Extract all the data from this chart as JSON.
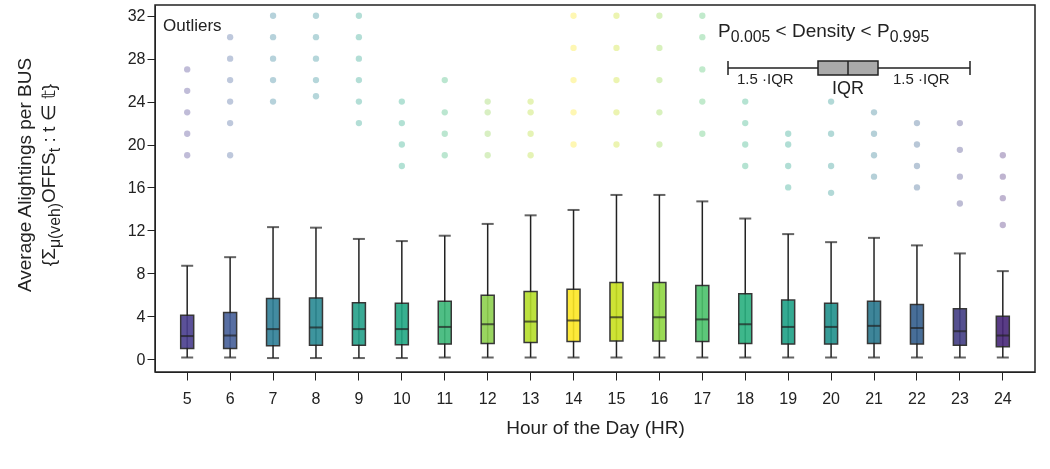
{
  "chart_data": {
    "type": "box",
    "xlabel": "Hour of the Day (HR)",
    "ylabel": "Average Alightings per BUS\n{Σ$_{μ(veh)}$OFFS$_{t}$ : t ∈ 𝕥}",
    "categories": [
      "5",
      "6",
      "7",
      "8",
      "9",
      "10",
      "11",
      "12",
      "13",
      "14",
      "15",
      "16",
      "17",
      "18",
      "19",
      "20",
      "21",
      "22",
      "23",
      "24"
    ],
    "colors": [
      "#4a3f8f",
      "#46609a",
      "#2f7f97",
      "#2a8a94",
      "#25a18a",
      "#22a884",
      "#3cb878",
      "#8fd14f",
      "#b5de2b",
      "#fde725",
      "#c8e020",
      "#90d743",
      "#4cc26c",
      "#2ab07f",
      "#1fa187",
      "#21918c",
      "#2a788e",
      "#355f8d",
      "#433e85",
      "#482878"
    ],
    "boxes": [
      {
        "low": 0.15,
        "q1": 1.0,
        "median": 2.15,
        "q3": 4.1,
        "high": 8.7,
        "outliers": [
          19,
          21,
          23,
          25,
          27
        ]
      },
      {
        "low": 0.15,
        "q1": 1.0,
        "median": 2.2,
        "q3": 4.35,
        "high": 9.5,
        "outliers": [
          19,
          22,
          24,
          26,
          28,
          30
        ]
      },
      {
        "low": 0.1,
        "q1": 1.25,
        "median": 2.8,
        "q3": 5.65,
        "high": 12.3,
        "outliers": [
          24,
          26,
          28,
          30,
          32
        ]
      },
      {
        "low": 0.1,
        "q1": 1.3,
        "median": 2.95,
        "q3": 5.7,
        "high": 12.25,
        "outliers": [
          24.5,
          26,
          28,
          30,
          32
        ]
      },
      {
        "low": 0.1,
        "q1": 1.3,
        "median": 2.8,
        "q3": 5.25,
        "high": 11.2,
        "outliers": [
          22,
          24,
          26,
          28,
          30,
          32
        ]
      },
      {
        "low": 0.1,
        "q1": 1.35,
        "median": 2.8,
        "q3": 5.2,
        "high": 11.0,
        "outliers": [
          18,
          20,
          22,
          24
        ]
      },
      {
        "low": 0.15,
        "q1": 1.4,
        "median": 3.0,
        "q3": 5.4,
        "high": 11.5,
        "outliers": [
          19,
          21,
          23,
          26
        ]
      },
      {
        "low": 0.15,
        "q1": 1.45,
        "median": 3.25,
        "q3": 5.95,
        "high": 12.6,
        "outliers": [
          19,
          21,
          23,
          24
        ]
      },
      {
        "low": 0.15,
        "q1": 1.55,
        "median": 3.5,
        "q3": 6.3,
        "high": 13.4,
        "outliers": [
          19,
          21,
          23,
          24
        ]
      },
      {
        "low": 0.15,
        "q1": 1.65,
        "median": 3.6,
        "q3": 6.5,
        "high": 13.9,
        "outliers": [
          20,
          23,
          26,
          29,
          32
        ]
      },
      {
        "low": 0.15,
        "q1": 1.7,
        "median": 3.9,
        "q3": 7.15,
        "high": 15.3,
        "outliers": [
          20,
          23,
          26,
          29,
          32
        ]
      },
      {
        "low": 0.15,
        "q1": 1.7,
        "median": 3.9,
        "q3": 7.15,
        "high": 15.3,
        "outliers": [
          20,
          23,
          26,
          29,
          32
        ]
      },
      {
        "low": 0.15,
        "q1": 1.65,
        "median": 3.7,
        "q3": 6.85,
        "high": 14.7,
        "outliers": [
          21,
          24,
          27,
          30,
          32
        ]
      },
      {
        "low": 0.15,
        "q1": 1.45,
        "median": 3.25,
        "q3": 6.1,
        "high": 13.1,
        "outliers": [
          18,
          20,
          22,
          24
        ]
      },
      {
        "low": 0.15,
        "q1": 1.4,
        "median": 3.0,
        "q3": 5.5,
        "high": 11.65,
        "outliers": [
          16,
          18,
          20,
          21
        ]
      },
      {
        "low": 0.15,
        "q1": 1.4,
        "median": 3.0,
        "q3": 5.2,
        "high": 10.9,
        "outliers": [
          15.5,
          18,
          21,
          24
        ]
      },
      {
        "low": 0.15,
        "q1": 1.45,
        "median": 3.1,
        "q3": 5.4,
        "high": 11.3,
        "outliers": [
          17,
          19,
          21,
          23
        ]
      },
      {
        "low": 0.15,
        "q1": 1.4,
        "median": 2.9,
        "q3": 5.1,
        "high": 10.6,
        "outliers": [
          16,
          18,
          20,
          22
        ]
      },
      {
        "low": 0.15,
        "q1": 1.3,
        "median": 2.6,
        "q3": 4.7,
        "high": 9.85,
        "outliers": [
          14.5,
          17,
          19.5,
          22
        ]
      },
      {
        "low": 0.15,
        "q1": 1.15,
        "median": 2.2,
        "q3": 4.0,
        "high": 8.2,
        "outliers": [
          12.5,
          15,
          17,
          19
        ]
      }
    ],
    "ylim": [
      -1.2,
      33
    ],
    "yticks": [
      0,
      4,
      8,
      12,
      16,
      20,
      24,
      28,
      32
    ],
    "grid": false,
    "annotations": [
      "Outliers",
      "P$_{0.005}$ < Density < P$_{0.995}$",
      "1.5 ·IQR",
      "IQR",
      "1.5 ·IQR"
    ]
  }
}
